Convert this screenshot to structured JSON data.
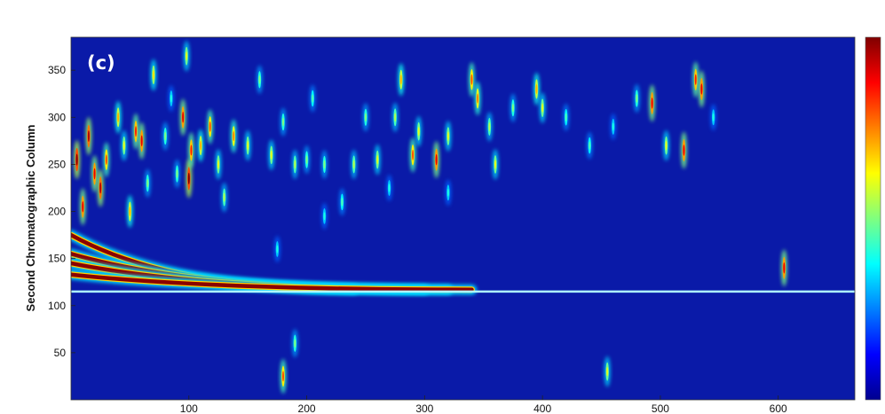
{
  "chart_data": {
    "type": "heatmap",
    "panel_label": "(c)",
    "xlabel": "",
    "ylabel": "Second Chromatographic Column",
    "xlim": [
      0,
      665
    ],
    "ylim": [
      0,
      385
    ],
    "x_ticks": [
      100,
      200,
      300,
      400,
      500,
      600
    ],
    "y_ticks": [
      50,
      100,
      150,
      200,
      250,
      300,
      350
    ],
    "colormap": "jet",
    "colors": {
      "background": "#0a1aa8",
      "low": "#00008f",
      "high": "#800000"
    },
    "colorbar": {
      "position": "right",
      "ticks_shown": false
    },
    "baseline": {
      "x": [
        0,
        665
      ],
      "y": 115
    },
    "bands": [
      {
        "x_start": 0,
        "x_end": 240,
        "y_start": 175,
        "y_end": 117,
        "intensity": "high"
      },
      {
        "x_start": 0,
        "x_end": 300,
        "y_start": 155,
        "y_end": 117,
        "intensity": "high"
      },
      {
        "x_start": 0,
        "x_end": 320,
        "y_start": 145,
        "y_end": 117,
        "intensity": "high"
      },
      {
        "x_start": 0,
        "x_end": 340,
        "y_start": 133,
        "y_end": 117,
        "intensity": "high"
      }
    ],
    "peaks": [
      {
        "x": 5,
        "y": 255,
        "i": 1.0
      },
      {
        "x": 15,
        "y": 280,
        "i": 0.95
      },
      {
        "x": 20,
        "y": 240,
        "i": 0.9
      },
      {
        "x": 25,
        "y": 225,
        "i": 0.95
      },
      {
        "x": 30,
        "y": 255,
        "i": 0.8
      },
      {
        "x": 40,
        "y": 300,
        "i": 0.7
      },
      {
        "x": 45,
        "y": 270,
        "i": 0.6
      },
      {
        "x": 55,
        "y": 285,
        "i": 0.85
      },
      {
        "x": 60,
        "y": 275,
        "i": 0.9
      },
      {
        "x": 50,
        "y": 200,
        "i": 0.7
      },
      {
        "x": 65,
        "y": 230,
        "i": 0.5
      },
      {
        "x": 70,
        "y": 345,
        "i": 0.65
      },
      {
        "x": 80,
        "y": 280,
        "i": 0.5
      },
      {
        "x": 85,
        "y": 320,
        "i": 0.4
      },
      {
        "x": 90,
        "y": 240,
        "i": 0.5
      },
      {
        "x": 95,
        "y": 300,
        "i": 0.9
      },
      {
        "x": 100,
        "y": 235,
        "i": 1.0
      },
      {
        "x": 102,
        "y": 265,
        "i": 0.85
      },
      {
        "x": 110,
        "y": 270,
        "i": 0.7
      },
      {
        "x": 118,
        "y": 290,
        "i": 0.8
      },
      {
        "x": 98,
        "y": 365,
        "i": 0.6
      },
      {
        "x": 125,
        "y": 250,
        "i": 0.6
      },
      {
        "x": 130,
        "y": 215,
        "i": 0.55
      },
      {
        "x": 138,
        "y": 280,
        "i": 0.75
      },
      {
        "x": 150,
        "y": 270,
        "i": 0.6
      },
      {
        "x": 160,
        "y": 340,
        "i": 0.5
      },
      {
        "x": 170,
        "y": 260,
        "i": 0.6
      },
      {
        "x": 180,
        "y": 295,
        "i": 0.5
      },
      {
        "x": 175,
        "y": 160,
        "i": 0.4
      },
      {
        "x": 190,
        "y": 250,
        "i": 0.55
      },
      {
        "x": 200,
        "y": 255,
        "i": 0.5
      },
      {
        "x": 205,
        "y": 320,
        "i": 0.45
      },
      {
        "x": 215,
        "y": 250,
        "i": 0.5
      },
      {
        "x": 230,
        "y": 210,
        "i": 0.45
      },
      {
        "x": 240,
        "y": 250,
        "i": 0.55
      },
      {
        "x": 250,
        "y": 300,
        "i": 0.5
      },
      {
        "x": 260,
        "y": 255,
        "i": 0.6
      },
      {
        "x": 280,
        "y": 340,
        "i": 0.7
      },
      {
        "x": 275,
        "y": 300,
        "i": 0.55
      },
      {
        "x": 290,
        "y": 260,
        "i": 0.8
      },
      {
        "x": 295,
        "y": 285,
        "i": 0.6
      },
      {
        "x": 310,
        "y": 255,
        "i": 0.9
      },
      {
        "x": 320,
        "y": 280,
        "i": 0.6
      },
      {
        "x": 340,
        "y": 340,
        "i": 0.8
      },
      {
        "x": 345,
        "y": 320,
        "i": 0.75
      },
      {
        "x": 355,
        "y": 290,
        "i": 0.55
      },
      {
        "x": 360,
        "y": 250,
        "i": 0.6
      },
      {
        "x": 375,
        "y": 310,
        "i": 0.5
      },
      {
        "x": 395,
        "y": 330,
        "i": 0.7
      },
      {
        "x": 400,
        "y": 310,
        "i": 0.6
      },
      {
        "x": 420,
        "y": 300,
        "i": 0.45
      },
      {
        "x": 440,
        "y": 270,
        "i": 0.45
      },
      {
        "x": 460,
        "y": 290,
        "i": 0.4
      },
      {
        "x": 480,
        "y": 320,
        "i": 0.5
      },
      {
        "x": 493,
        "y": 315,
        "i": 0.9
      },
      {
        "x": 505,
        "y": 270,
        "i": 0.6
      },
      {
        "x": 520,
        "y": 265,
        "i": 0.9
      },
      {
        "x": 530,
        "y": 340,
        "i": 0.85
      },
      {
        "x": 535,
        "y": 330,
        "i": 0.9
      },
      {
        "x": 545,
        "y": 300,
        "i": 0.4
      },
      {
        "x": 605,
        "y": 140,
        "i": 0.9
      },
      {
        "x": 180,
        "y": 25,
        "i": 0.8
      },
      {
        "x": 455,
        "y": 30,
        "i": 0.6
      },
      {
        "x": 190,
        "y": 60,
        "i": 0.5
      },
      {
        "x": 270,
        "y": 225,
        "i": 0.4
      },
      {
        "x": 320,
        "y": 220,
        "i": 0.4
      },
      {
        "x": 215,
        "y": 195,
        "i": 0.4
      },
      {
        "x": 10,
        "y": 205,
        "i": 0.9
      }
    ]
  }
}
